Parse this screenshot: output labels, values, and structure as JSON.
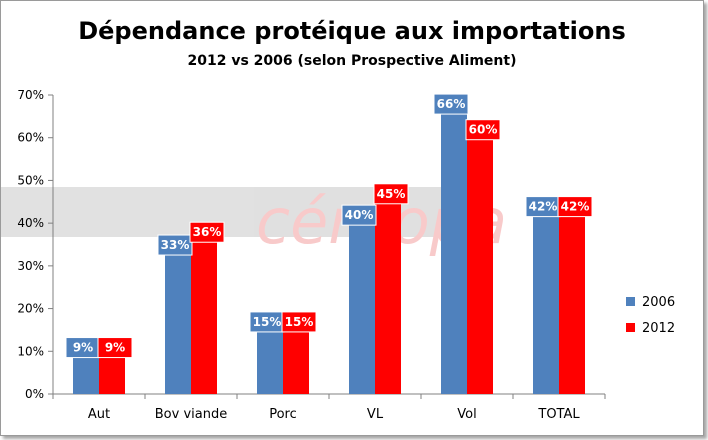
{
  "chart_data": {
    "type": "bar",
    "title": "Dépendance protéique aux importations",
    "subtitle": "2012 vs 2006 (selon Prospective Aliment)",
    "xlabel": "",
    "ylabel": "",
    "categories": [
      "Aut",
      "Bov viande",
      "Porc",
      "VL",
      "Vol",
      "TOTAL"
    ],
    "series": [
      {
        "name": "2006",
        "color": "#4f81bd",
        "values": [
          9,
          33,
          15,
          40,
          66,
          42
        ]
      },
      {
        "name": "2012",
        "color": "#ff0000",
        "values": [
          9,
          36,
          15,
          45,
          60,
          42
        ]
      }
    ],
    "data_labels": {
      "2006": [
        "9%",
        "33%",
        "15%",
        "40%",
        "66%",
        "42%"
      ],
      "2012": [
        "9%",
        "36%",
        "15%",
        "45%",
        "60%",
        "42%"
      ]
    },
    "ylim": [
      0,
      70
    ],
    "yticks": [
      0,
      10,
      20,
      30,
      40,
      50,
      60,
      70
    ],
    "ytick_labels": [
      "0%",
      "10%",
      "20%",
      "30%",
      "40%",
      "50%",
      "60%",
      "70%"
    ],
    "legend_position": "right",
    "grid": false
  },
  "watermark": {
    "text": "céréopa",
    "color": "#f08080"
  }
}
